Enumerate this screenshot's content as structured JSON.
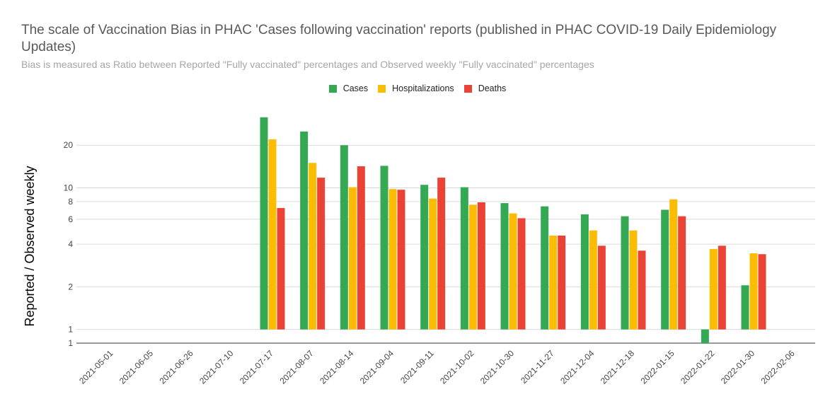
{
  "title": "The scale of Vaccination Bias in PHAC 'Cases following vaccination' reports (published in PHAC COVID-19 Daily Epidemiology Updates)",
  "subtitle": "Bias is measured as Ratio between Reported \"Fully vaccinated\" percentages and Observed weekly  \"Fully vaccinated\" percentages",
  "colors": {
    "Cases": "#34a853",
    "Hospitalizations": "#fbbc04",
    "Deaths": "#ea4335",
    "grid": "#d9d9d9"
  },
  "chart_data": {
    "type": "bar",
    "title": "The scale of Vaccination Bias in PHAC 'Cases following vaccination' reports (published in PHAC COVID-19 Daily Epidemiology Updates)",
    "subtitle": "Bias is measured as Ratio between Reported \"Fully vaccinated\" percentages and Observed weekly  \"Fully vaccinated\" percentages",
    "xlabel": "",
    "ylabel": "Reported  / Observed weekly",
    "y_scale": "log",
    "ylim": [
      0.8,
      40
    ],
    "y_ticks": [
      {
        "value": 0.8,
        "label": "1"
      },
      {
        "value": 1,
        "label": "1"
      },
      {
        "value": 2,
        "label": "2"
      },
      {
        "value": 4,
        "label": "4"
      },
      {
        "value": 6,
        "label": "6"
      },
      {
        "value": 8,
        "label": "8"
      },
      {
        "value": 10,
        "label": "10"
      },
      {
        "value": 20,
        "label": "20"
      }
    ],
    "grid": true,
    "legend": "top",
    "bar_baseline": 1,
    "categories": [
      "2021-05-01",
      "2021-06-05",
      "2021-06-26",
      "2021-07-10",
      "2021-07-17",
      "2021-08-07",
      "2021-08-14",
      "2021-09-04",
      "2021-09-11",
      "2021-10-02",
      "2021-10-30",
      "2021-11-27",
      "2021-12-04",
      "2021-12-18",
      "2022-01-15",
      "2022-01-22",
      "2022-01-30",
      "2022-02-06"
    ],
    "series": [
      {
        "name": "Cases",
        "values": [
          null,
          null,
          null,
          null,
          31.5,
          25,
          20,
          14.3,
          10.5,
          10.1,
          7.8,
          7.4,
          6.5,
          6.3,
          7.0,
          0.8,
          2.05,
          null
        ]
      },
      {
        "name": "Hospitalizations",
        "values": [
          null,
          null,
          null,
          null,
          22,
          15,
          10.1,
          9.8,
          8.4,
          7.6,
          6.6,
          4.6,
          5.0,
          5.0,
          8.3,
          3.7,
          3.45,
          null
        ]
      },
      {
        "name": "Deaths",
        "values": [
          null,
          null,
          null,
          null,
          7.2,
          11.8,
          14.2,
          9.7,
          11.8,
          7.9,
          6.1,
          4.6,
          3.9,
          3.6,
          6.3,
          3.9,
          3.4,
          null
        ]
      }
    ]
  }
}
